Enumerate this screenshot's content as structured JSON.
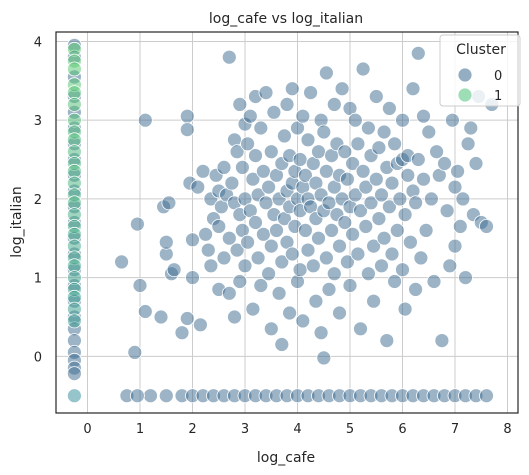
{
  "chart_data": {
    "type": "scatter",
    "title": "log_cafe vs log_italian",
    "xlabel": "log_cafe",
    "ylabel": "log_italian",
    "xlim": [
      -0.6,
      8.2
    ],
    "ylim": [
      -0.72,
      4.12
    ],
    "xticks": [
      0,
      1,
      2,
      3,
      4,
      5,
      6,
      7,
      8
    ],
    "yticks": [
      0,
      1,
      2,
      3,
      4
    ],
    "grid": true,
    "legend": {
      "title": "Cluster",
      "placement": "top-right",
      "entries": [
        {
          "label": "0",
          "color": "#3b6a8f"
        },
        {
          "label": "1",
          "color": "#4cc27a"
        }
      ]
    },
    "series": [
      {
        "name": "0",
        "color": "#3b6a8f",
        "points": [
          [
            -0.25,
            3.95
          ],
          [
            -0.25,
            3.8
          ],
          [
            -0.25,
            3.55
          ],
          [
            -0.25,
            3.3
          ],
          [
            -0.25,
            3.1
          ],
          [
            -0.25,
            2.9
          ],
          [
            -0.25,
            2.7
          ],
          [
            -0.25,
            2.5
          ],
          [
            -0.25,
            2.3
          ],
          [
            -0.25,
            2.1
          ],
          [
            -0.25,
            1.9
          ],
          [
            -0.25,
            1.7
          ],
          [
            -0.25,
            1.5
          ],
          [
            -0.25,
            1.3
          ],
          [
            -0.25,
            1.1
          ],
          [
            -0.25,
            0.9
          ],
          [
            -0.25,
            0.7
          ],
          [
            -0.25,
            0.5
          ],
          [
            -0.25,
            0.35
          ],
          [
            -0.25,
            0.2
          ],
          [
            -0.25,
            0.05
          ],
          [
            -0.25,
            -0.05
          ],
          [
            -0.25,
            -0.15
          ],
          [
            -0.25,
            -0.22
          ],
          [
            0.65,
            1.2
          ],
          [
            0.9,
            0.05
          ],
          [
            0.95,
            1.68
          ],
          [
            1.0,
            0.9
          ],
          [
            1.1,
            3.0
          ],
          [
            1.1,
            0.57
          ],
          [
            1.4,
            0.5
          ],
          [
            1.45,
            1.9
          ],
          [
            1.5,
            1.3
          ],
          [
            1.5,
            1.45
          ],
          [
            1.55,
            1.95
          ],
          [
            1.6,
            1.05
          ],
          [
            1.65,
            1.1
          ],
          [
            1.8,
            0.3
          ],
          [
            1.9,
            0.48
          ],
          [
            1.9,
            3.05
          ],
          [
            1.9,
            2.88
          ],
          [
            1.95,
            2.2
          ],
          [
            2.0,
            1.48
          ],
          [
            2.0,
            1.0
          ],
          [
            2.1,
            2.15
          ],
          [
            2.15,
            0.4
          ],
          [
            2.2,
            2.35
          ],
          [
            2.25,
            1.55
          ],
          [
            2.3,
            1.35
          ],
          [
            2.35,
            2.0
          ],
          [
            2.35,
            1.15
          ],
          [
            2.4,
            1.75
          ],
          [
            2.45,
            2.3
          ],
          [
            2.5,
            1.65
          ],
          [
            2.5,
            0.85
          ],
          [
            2.5,
            2.1
          ],
          [
            2.55,
            1.9
          ],
          [
            2.6,
            1.25
          ],
          [
            2.6,
            2.4
          ],
          [
            2.65,
            2.05
          ],
          [
            2.7,
            3.8
          ],
          [
            2.7,
            1.5
          ],
          [
            2.7,
            0.8
          ],
          [
            2.75,
            2.2
          ],
          [
            2.8,
            1.95
          ],
          [
            2.8,
            2.75
          ],
          [
            2.8,
            0.5
          ],
          [
            2.85,
            1.35
          ],
          [
            2.85,
            2.6
          ],
          [
            2.9,
            3.2
          ],
          [
            2.9,
            1.8
          ],
          [
            2.9,
            0.95
          ],
          [
            2.95,
            2.4
          ],
          [
            2.95,
            1.6
          ],
          [
            3.0,
            2.0
          ],
          [
            3.0,
            2.95
          ],
          [
            3.0,
            1.15
          ],
          [
            3.05,
            2.7
          ],
          [
            3.05,
            1.45
          ],
          [
            3.1,
            1.85
          ],
          [
            3.1,
            3.05
          ],
          [
            3.15,
            2.25
          ],
          [
            3.15,
            0.6
          ],
          [
            3.2,
            1.7
          ],
          [
            3.2,
            2.55
          ],
          [
            3.2,
            3.3
          ],
          [
            3.25,
            1.25
          ],
          [
            3.25,
            2.05
          ],
          [
            3.3,
            0.9
          ],
          [
            3.3,
            2.9
          ],
          [
            3.35,
            1.55
          ],
          [
            3.35,
            2.35
          ],
          [
            3.4,
            3.35
          ],
          [
            3.4,
            1.95
          ],
          [
            3.45,
            2.15
          ],
          [
            3.45,
            1.05
          ],
          [
            3.5,
            2.6
          ],
          [
            3.5,
            1.4
          ],
          [
            3.5,
            0.35
          ],
          [
            3.55,
            1.8
          ],
          [
            3.55,
            3.1
          ],
          [
            3.6,
            2.3
          ],
          [
            3.6,
            1.6
          ],
          [
            3.65,
            2.0
          ],
          [
            3.65,
            0.8
          ],
          [
            3.7,
            2.45
          ],
          [
            3.7,
            1.2
          ],
          [
            3.7,
            0.15
          ],
          [
            3.75,
            2.8
          ],
          [
            3.75,
            1.75
          ],
          [
            3.8,
            3.2
          ],
          [
            3.8,
            2.1
          ],
          [
            3.8,
            1.45
          ],
          [
            3.85,
            1.9
          ],
          [
            3.85,
            2.55
          ],
          [
            3.85,
            0.55
          ],
          [
            3.9,
            3.4
          ],
          [
            3.9,
            2.2
          ],
          [
            3.9,
            1.3
          ],
          [
            3.95,
            1.65
          ],
          [
            3.95,
            2.35
          ],
          [
            4.0,
            2.0
          ],
          [
            4.0,
            2.9
          ],
          [
            4.0,
            0.95
          ],
          [
            4.05,
            1.85
          ],
          [
            4.05,
            2.5
          ],
          [
            4.05,
            1.1
          ],
          [
            4.1,
            2.15
          ],
          [
            4.1,
            3.05
          ],
          [
            4.1,
            0.45
          ],
          [
            4.15,
            1.6
          ],
          [
            4.15,
            2.3
          ],
          [
            4.2,
            2.0
          ],
          [
            4.2,
            2.75
          ],
          [
            4.2,
            1.35
          ],
          [
            4.25,
            1.9
          ],
          [
            4.25,
            3.35
          ],
          [
            4.3,
            2.45
          ],
          [
            4.3,
            1.15
          ],
          [
            4.35,
            1.75
          ],
          [
            4.35,
            2.2
          ],
          [
            4.35,
            0.7
          ],
          [
            4.4,
            2.6
          ],
          [
            4.4,
            1.5
          ],
          [
            4.45,
            3.0
          ],
          [
            4.45,
            2.05
          ],
          [
            4.45,
            0.3
          ],
          [
            4.5,
            1.85
          ],
          [
            4.5,
            2.85
          ],
          [
            4.5,
            -0.02
          ],
          [
            4.55,
            3.6
          ],
          [
            4.55,
            2.35
          ],
          [
            4.55,
            1.25
          ],
          [
            4.6,
            1.95
          ],
          [
            4.6,
            0.85
          ],
          [
            4.65,
            2.55
          ],
          [
            4.65,
            1.6
          ],
          [
            4.7,
            2.15
          ],
          [
            4.7,
            3.2
          ],
          [
            4.7,
            1.05
          ],
          [
            4.75,
            1.8
          ],
          [
            4.75,
            2.7
          ],
          [
            4.8,
            2.3
          ],
          [
            4.8,
            1.4
          ],
          [
            4.8,
            0.55
          ],
          [
            4.85,
            2.0
          ],
          [
            4.85,
            3.4
          ],
          [
            4.9,
            1.7
          ],
          [
            4.9,
            2.6
          ],
          [
            4.95,
            1.2
          ],
          [
            4.95,
            2.25
          ],
          [
            5.0,
            3.15
          ],
          [
            5.0,
            1.9
          ],
          [
            5.0,
            0.9
          ],
          [
            5.05,
            2.45
          ],
          [
            5.05,
            1.55
          ],
          [
            5.1,
            2.05
          ],
          [
            5.1,
            3.0
          ],
          [
            5.15,
            1.3
          ],
          [
            5.15,
            2.7
          ],
          [
            5.2,
            1.85
          ],
          [
            5.2,
            0.35
          ],
          [
            5.25,
            2.35
          ],
          [
            5.25,
            3.65
          ],
          [
            5.3,
            1.65
          ],
          [
            5.3,
            2.15
          ],
          [
            5.35,
            1.05
          ],
          [
            5.35,
            2.9
          ],
          [
            5.4,
            1.95
          ],
          [
            5.4,
            2.55
          ],
          [
            5.45,
            1.4
          ],
          [
            5.45,
            0.7
          ],
          [
            5.5,
            2.25
          ],
          [
            5.5,
            3.3
          ],
          [
            5.55,
            1.75
          ],
          [
            5.55,
            2.65
          ],
          [
            5.6,
            1.15
          ],
          [
            5.6,
            2.05
          ],
          [
            5.65,
            2.85
          ],
          [
            5.65,
            1.5
          ],
          [
            5.7,
            0.2
          ],
          [
            5.7,
            2.4
          ],
          [
            5.75,
            1.9
          ],
          [
            5.75,
            3.15
          ],
          [
            5.8,
            1.3
          ],
          [
            5.8,
            2.2
          ],
          [
            5.85,
            2.7
          ],
          [
            5.85,
            0.95
          ],
          [
            5.9,
            1.6
          ],
          [
            5.9,
            2.45
          ],
          [
            5.95,
            2.0
          ],
          [
            6.0,
            3.0
          ],
          [
            6.0,
            1.1
          ],
          [
            6.0,
            2.5
          ],
          [
            6.05,
            1.8
          ],
          [
            6.05,
            0.6
          ],
          [
            6.1,
            2.3
          ],
          [
            6.1,
            2.55
          ],
          [
            6.15,
            1.45
          ],
          [
            6.2,
            3.4
          ],
          [
            6.2,
            2.1
          ],
          [
            6.25,
            0.85
          ],
          [
            6.25,
            1.95
          ],
          [
            6.3,
            3.85
          ],
          [
            6.3,
            2.5
          ],
          [
            6.35,
            1.25
          ],
          [
            6.4,
            2.25
          ],
          [
            6.4,
            3.05
          ],
          [
            6.45,
            1.6
          ],
          [
            6.5,
            2.85
          ],
          [
            6.55,
            2.0
          ],
          [
            6.6,
            0.95
          ],
          [
            6.65,
            2.6
          ],
          [
            6.7,
            2.3
          ],
          [
            6.75,
            0.2
          ],
          [
            6.8,
            2.45
          ],
          [
            6.85,
            1.85
          ],
          [
            6.9,
            1.15
          ],
          [
            6.95,
            3.0
          ],
          [
            7.0,
            2.15
          ],
          [
            7.0,
            1.4
          ],
          [
            7.05,
            2.35
          ],
          [
            7.1,
            1.65
          ],
          [
            7.15,
            2.0
          ],
          [
            7.2,
            1.0
          ],
          [
            7.25,
            2.7
          ],
          [
            7.3,
            2.9
          ],
          [
            7.35,
            1.8
          ],
          [
            7.4,
            2.45
          ],
          [
            7.45,
            3.3
          ],
          [
            7.5,
            1.7
          ],
          [
            7.6,
            1.65
          ],
          [
            7.7,
            3.2
          ],
          [
            1.2,
            -0.5
          ],
          [
            1.5,
            -0.5
          ],
          [
            1.8,
            -0.5
          ],
          [
            2.0,
            -0.5
          ],
          [
            2.2,
            -0.5
          ],
          [
            2.4,
            -0.5
          ],
          [
            2.6,
            -0.5
          ],
          [
            2.8,
            -0.5
          ],
          [
            3.0,
            -0.5
          ],
          [
            3.2,
            -0.5
          ],
          [
            3.4,
            -0.5
          ],
          [
            3.6,
            -0.5
          ],
          [
            3.8,
            -0.5
          ],
          [
            4.0,
            -0.5
          ],
          [
            4.2,
            -0.5
          ],
          [
            4.4,
            -0.5
          ],
          [
            4.6,
            -0.5
          ],
          [
            4.8,
            -0.5
          ],
          [
            5.0,
            -0.5
          ],
          [
            5.2,
            -0.5
          ],
          [
            5.4,
            -0.5
          ],
          [
            5.6,
            -0.5
          ],
          [
            5.8,
            -0.5
          ],
          [
            6.0,
            -0.5
          ],
          [
            6.2,
            -0.5
          ],
          [
            6.4,
            -0.5
          ],
          [
            6.6,
            -0.5
          ],
          [
            6.8,
            -0.5
          ],
          [
            7.0,
            -0.5
          ],
          [
            7.2,
            -0.5
          ],
          [
            7.4,
            -0.5
          ],
          [
            7.6,
            -0.5
          ],
          [
            0.75,
            -0.5
          ],
          [
            0.95,
            -0.5
          ]
        ]
      },
      {
        "name": "1",
        "color": "#4cc27a",
        "points": [
          [
            -0.25,
            3.9
          ],
          [
            -0.25,
            3.75
          ],
          [
            -0.25,
            3.65
          ],
          [
            -0.25,
            3.45
          ],
          [
            -0.25,
            3.35
          ],
          [
            -0.25,
            3.2
          ],
          [
            -0.25,
            3.0
          ],
          [
            -0.25,
            2.85
          ],
          [
            -0.25,
            2.75
          ],
          [
            -0.25,
            2.6
          ],
          [
            -0.25,
            2.45
          ],
          [
            -0.25,
            2.35
          ],
          [
            -0.25,
            2.2
          ],
          [
            -0.25,
            2.05
          ],
          [
            -0.25,
            1.95
          ],
          [
            -0.25,
            1.8
          ],
          [
            -0.25,
            1.65
          ],
          [
            -0.25,
            1.55
          ],
          [
            -0.25,
            1.4
          ],
          [
            -0.25,
            1.25
          ],
          [
            -0.25,
            1.15
          ],
          [
            -0.25,
            1.0
          ],
          [
            -0.25,
            0.85
          ],
          [
            -0.25,
            0.75
          ],
          [
            -0.25,
            0.6
          ],
          [
            -0.25,
            0.45
          ],
          [
            -0.25,
            -0.5
          ]
        ]
      }
    ]
  }
}
